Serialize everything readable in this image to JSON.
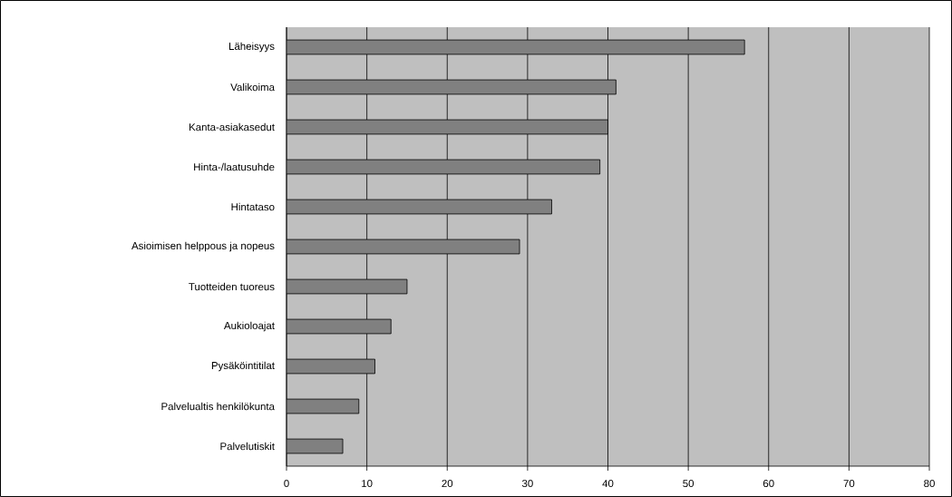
{
  "chart_data": {
    "type": "bar",
    "orientation": "horizontal",
    "categories": [
      "Läheisyys",
      "Valikoima",
      "Kanta-asiakasedut",
      "Hinta-/laatusuhde",
      "Hintataso",
      "Asioimisen helppous ja nopeus",
      "Tuotteiden tuoreus",
      "Aukioloajat",
      "Pysäköintitilat",
      "Palvelualtis henkilökunta",
      "Palvelutiskit"
    ],
    "values": [
      57,
      41,
      40,
      39,
      33,
      29,
      15,
      13,
      11,
      9,
      7
    ],
    "color": "#808080",
    "xlim": [
      0,
      80
    ],
    "xticks": [
      0,
      10,
      20,
      30,
      40,
      50,
      60,
      70,
      80
    ],
    "grid": "x"
  }
}
